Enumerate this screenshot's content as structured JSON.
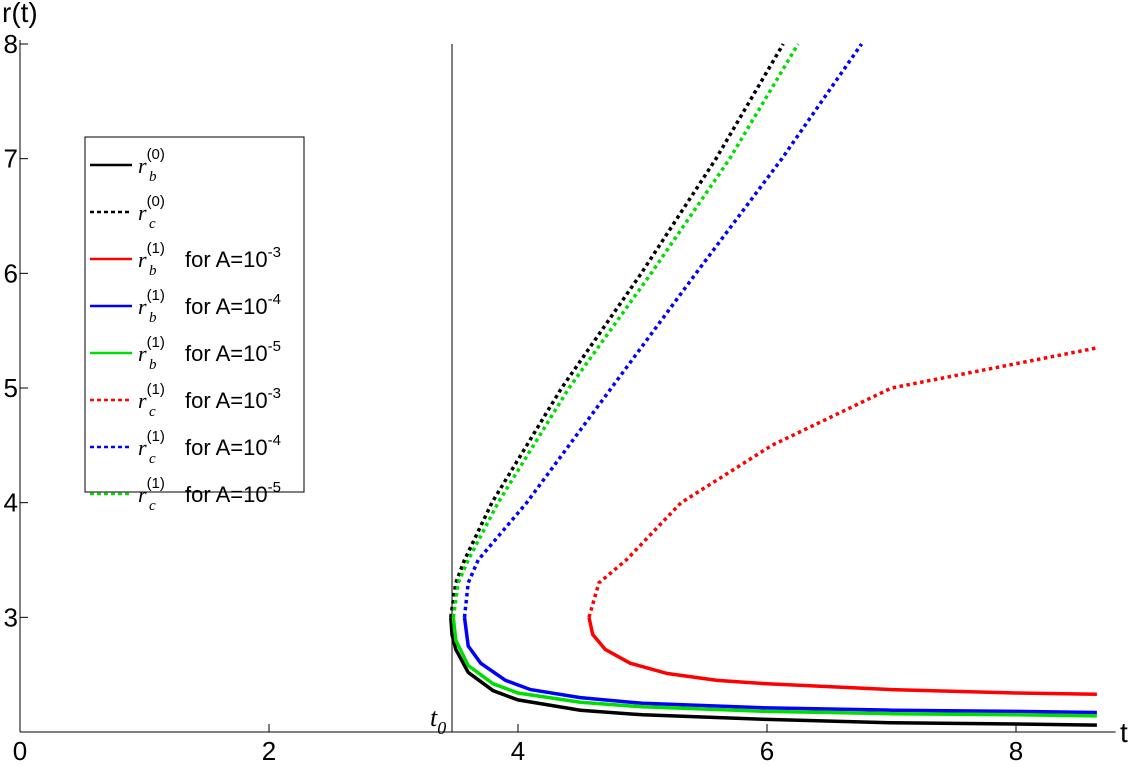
{
  "chart_data": {
    "type": "line",
    "x_label": "t",
    "y_label": "r(t)",
    "xlim": [
      0,
      8.8
    ],
    "ylim": [
      2,
      8
    ],
    "xticks": [
      0,
      2,
      4,
      6,
      8
    ],
    "yticks": [
      3,
      4,
      5,
      6,
      7,
      8
    ],
    "marker_line": {
      "x": 3.47,
      "label": "t",
      "label_sub": "0"
    },
    "legend": "upper left",
    "series": [
      {
        "name": "r",
        "name_sub": "b",
        "name_sup": "(0)",
        "color": "#000000",
        "dashed": false,
        "x": [
          3.46,
          3.47,
          3.5,
          3.6,
          3.8,
          4.0,
          4.5,
          5,
          6,
          7,
          8,
          8.65
        ],
        "values": [
          3.0,
          2.85,
          2.72,
          2.52,
          2.36,
          2.28,
          2.19,
          2.15,
          2.11,
          2.08,
          2.07,
          2.06
        ]
      },
      {
        "name": "r",
        "name_sub": "c",
        "name_sup": "(0)",
        "color": "#000000",
        "dashed": true,
        "x": [
          3.46,
          3.5,
          3.57,
          3.79,
          4.35,
          4.99,
          5.59,
          6.13
        ],
        "values": [
          3.0,
          3.3,
          3.5,
          4,
          5,
          6,
          7,
          8
        ]
      },
      {
        "name": "r",
        "name_sub": "b",
        "name_sup": "(1)",
        "name_rest": "for A=10",
        "name_exp": "-3",
        "color": "#ff0000",
        "dashed": false,
        "x": [
          4.57,
          4.6,
          4.7,
          4.9,
          5.2,
          5.6,
          6,
          7,
          8,
          8.65
        ],
        "values": [
          3.0,
          2.85,
          2.72,
          2.6,
          2.51,
          2.45,
          2.42,
          2.37,
          2.34,
          2.33
        ]
      },
      {
        "name": "r",
        "name_sub": "b",
        "name_sup": "(1)",
        "name_rest": "for A=10",
        "name_exp": "-4",
        "color": "#0000ff",
        "dashed": false,
        "x": [
          3.57,
          3.6,
          3.7,
          3.9,
          4.1,
          4.5,
          5,
          6,
          7,
          8,
          8.65
        ],
        "values": [
          3.0,
          2.75,
          2.6,
          2.45,
          2.37,
          2.3,
          2.25,
          2.21,
          2.19,
          2.18,
          2.17
        ]
      },
      {
        "name": "r",
        "name_sub": "b",
        "name_sup": "(1)",
        "name_rest": "for A=10",
        "name_exp": "-5",
        "color": "#00dd00",
        "dashed": false,
        "x": [
          3.48,
          3.5,
          3.6,
          3.8,
          4.0,
          4.5,
          5,
          6,
          7,
          8,
          8.65
        ],
        "values": [
          3.0,
          2.8,
          2.58,
          2.42,
          2.34,
          2.26,
          2.22,
          2.18,
          2.16,
          2.15,
          2.14
        ]
      },
      {
        "name": "r",
        "name_sub": "c",
        "name_sup": "(1)",
        "name_rest": "for A=10",
        "name_exp": "-3",
        "color": "#ff0000",
        "dashed": true,
        "x": [
          4.57,
          4.65,
          4.87,
          5.31,
          6.04,
          7.0,
          8.65
        ],
        "values": [
          3.0,
          3.3,
          3.5,
          4,
          4.5,
          5,
          5.35
        ]
      },
      {
        "name": "r",
        "name_sub": "c",
        "name_sup": "(1)",
        "name_rest": "for A=10",
        "name_exp": "-4",
        "color": "#0000ff",
        "dashed": true,
        "x": [
          3.57,
          3.6,
          3.68,
          4.07,
          4.75,
          5.43,
          6.12,
          6.76
        ],
        "values": [
          3.0,
          3.3,
          3.5,
          4,
          5,
          6,
          7,
          8
        ]
      },
      {
        "name": "r",
        "name_sub": "c",
        "name_sup": "(1)",
        "name_rest": "for A=10",
        "name_exp": "-5",
        "color": "#00dd00",
        "dashed": true,
        "x": [
          3.48,
          3.52,
          3.6,
          3.84,
          4.41,
          5.07,
          5.7,
          6.25
        ],
        "values": [
          3.0,
          3.3,
          3.5,
          4,
          5,
          6,
          7,
          8
        ]
      }
    ]
  }
}
